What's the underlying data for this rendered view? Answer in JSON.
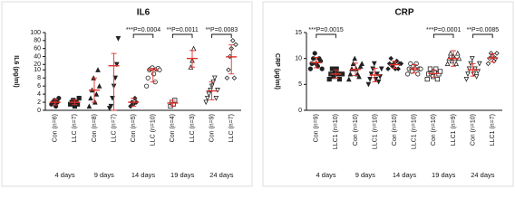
{
  "chart_data": [
    {
      "type": "scatter",
      "title": "IL6",
      "y_label": "IL6 (pg/ml)",
      "categories": [
        "Con (n=6)",
        "LLC (n=7)",
        "Con (n=8)",
        "LLC (n=7)",
        "Con (n=5)",
        "LLC (n=10)",
        "Con (n=4)",
        "LLC (n=3)",
        "Con (n=9)",
        "LLC (n=7)"
      ],
      "groups": [
        "4 days",
        "9 days",
        "14 days",
        "19 days",
        "24 days"
      ],
      "points": [
        [
          1.5,
          2,
          2.5,
          1,
          2,
          3
        ],
        [
          1.5,
          2,
          2.5,
          1,
          2,
          1.5,
          3
        ],
        [
          1,
          3,
          5,
          8,
          2,
          4,
          10,
          6
        ],
        [
          0.5,
          1,
          3,
          6,
          8,
          20,
          85
        ],
        [
          1,
          2,
          1.5,
          3,
          2
        ],
        [
          6,
          8,
          10,
          12,
          14,
          9,
          7,
          11,
          13,
          10
        ],
        [
          1,
          2,
          1.5,
          2.5
        ],
        [
          15,
          30,
          60
        ],
        [
          2,
          3,
          4,
          5,
          6,
          7,
          8,
          3,
          5
        ],
        [
          8,
          10,
          40,
          60,
          80,
          8,
          70
        ]
      ],
      "means": [
        2,
        2,
        5,
        17.6,
        2,
        10,
        1.8,
        35,
        4.8,
        39
      ],
      "errors": [
        0.7,
        0.6,
        3,
        30,
        1,
        3,
        0.7,
        20,
        2.2,
        30
      ],
      "markers": [
        "circle",
        "square",
        "triangle",
        "triangle-down",
        "diamond",
        "circle-open",
        "square-open",
        "triangle-open",
        "triangle-down-open",
        "diamond-open"
      ],
      "point_color": "#222222",
      "mean_color": "#e0302a",
      "ylim": [
        0,
        100
      ],
      "axis_break": [
        10,
        20
      ],
      "yticks": [
        0,
        2,
        4,
        6,
        8,
        10,
        20,
        40,
        60,
        80,
        100
      ],
      "annotations": [
        {
          "text": "***P=0.0004",
          "group": "14 days"
        },
        {
          "text": "**P=0.0011",
          "group": "19 days"
        },
        {
          "text": "**P=0.0083",
          "group": "24 days"
        }
      ]
    },
    {
      "type": "scatter",
      "title": "CRP",
      "y_label": "CRP (μg/ml)",
      "categories": [
        "Con (n=9)",
        "LLC1 (n=10)",
        "Con (n=10)",
        "LLC1 (n=10)",
        "Con (n=10)",
        "LLC1 (n=10)",
        "Con (n=10)",
        "LLC1 (n=9)",
        "Con (n=10)",
        "LLC1 (n=7)"
      ],
      "groups": [
        "4 days",
        "9 days",
        "14 days",
        "19 days",
        "24 days"
      ],
      "points": [
        [
          8,
          9,
          10,
          11,
          9,
          8.5,
          10,
          9.5,
          8
        ],
        [
          6,
          7,
          8,
          6.5,
          7.5,
          8,
          7,
          6,
          7,
          7
        ],
        [
          6,
          7,
          8,
          9,
          10,
          8,
          7,
          6.5,
          8.5,
          9
        ],
        [
          5,
          6,
          7,
          8,
          9,
          6,
          7,
          5.5,
          6.5,
          8
        ],
        [
          8,
          9,
          10,
          8.5,
          9,
          8,
          9.5,
          8,
          9,
          9
        ],
        [
          7,
          8,
          9,
          7.5,
          8.5,
          8,
          9,
          7,
          8,
          8
        ],
        [
          6,
          7,
          8,
          7,
          6.5,
          7.5,
          8,
          6,
          7,
          7.5
        ],
        [
          9,
          10,
          11,
          9.5,
          10.5,
          10,
          9,
          11,
          10
        ],
        [
          6,
          7,
          8,
          9,
          10,
          7,
          8,
          6.5,
          7.5,
          9
        ],
        [
          9,
          10,
          11,
          10.5,
          9.5,
          10,
          11
        ]
      ],
      "means": [
        9.2,
        7,
        7.9,
        6.8,
        8.8,
        8,
        7.1,
        10,
        7.8,
        10.1
      ],
      "errors": [
        1,
        0.8,
        1.2,
        1.3,
        0.7,
        0.8,
        0.7,
        1.5,
        1.2,
        0.8
      ],
      "markers": [
        "circle",
        "square",
        "triangle",
        "triangle-down",
        "diamond",
        "circle-open",
        "square-open",
        "triangle-open",
        "triangle-down-open",
        "diamond-open"
      ],
      "point_color": "#222222",
      "mean_color": "#e0302a",
      "ylim": [
        0,
        15
      ],
      "yticks": [
        0,
        5,
        10,
        15
      ],
      "annotations": [
        {
          "text": "***P=0.0015",
          "group": "4 days"
        },
        {
          "text": "***P=0.0001",
          "group": "19 days"
        },
        {
          "text": "**P=0.0085",
          "group": "24 days"
        }
      ]
    }
  ]
}
